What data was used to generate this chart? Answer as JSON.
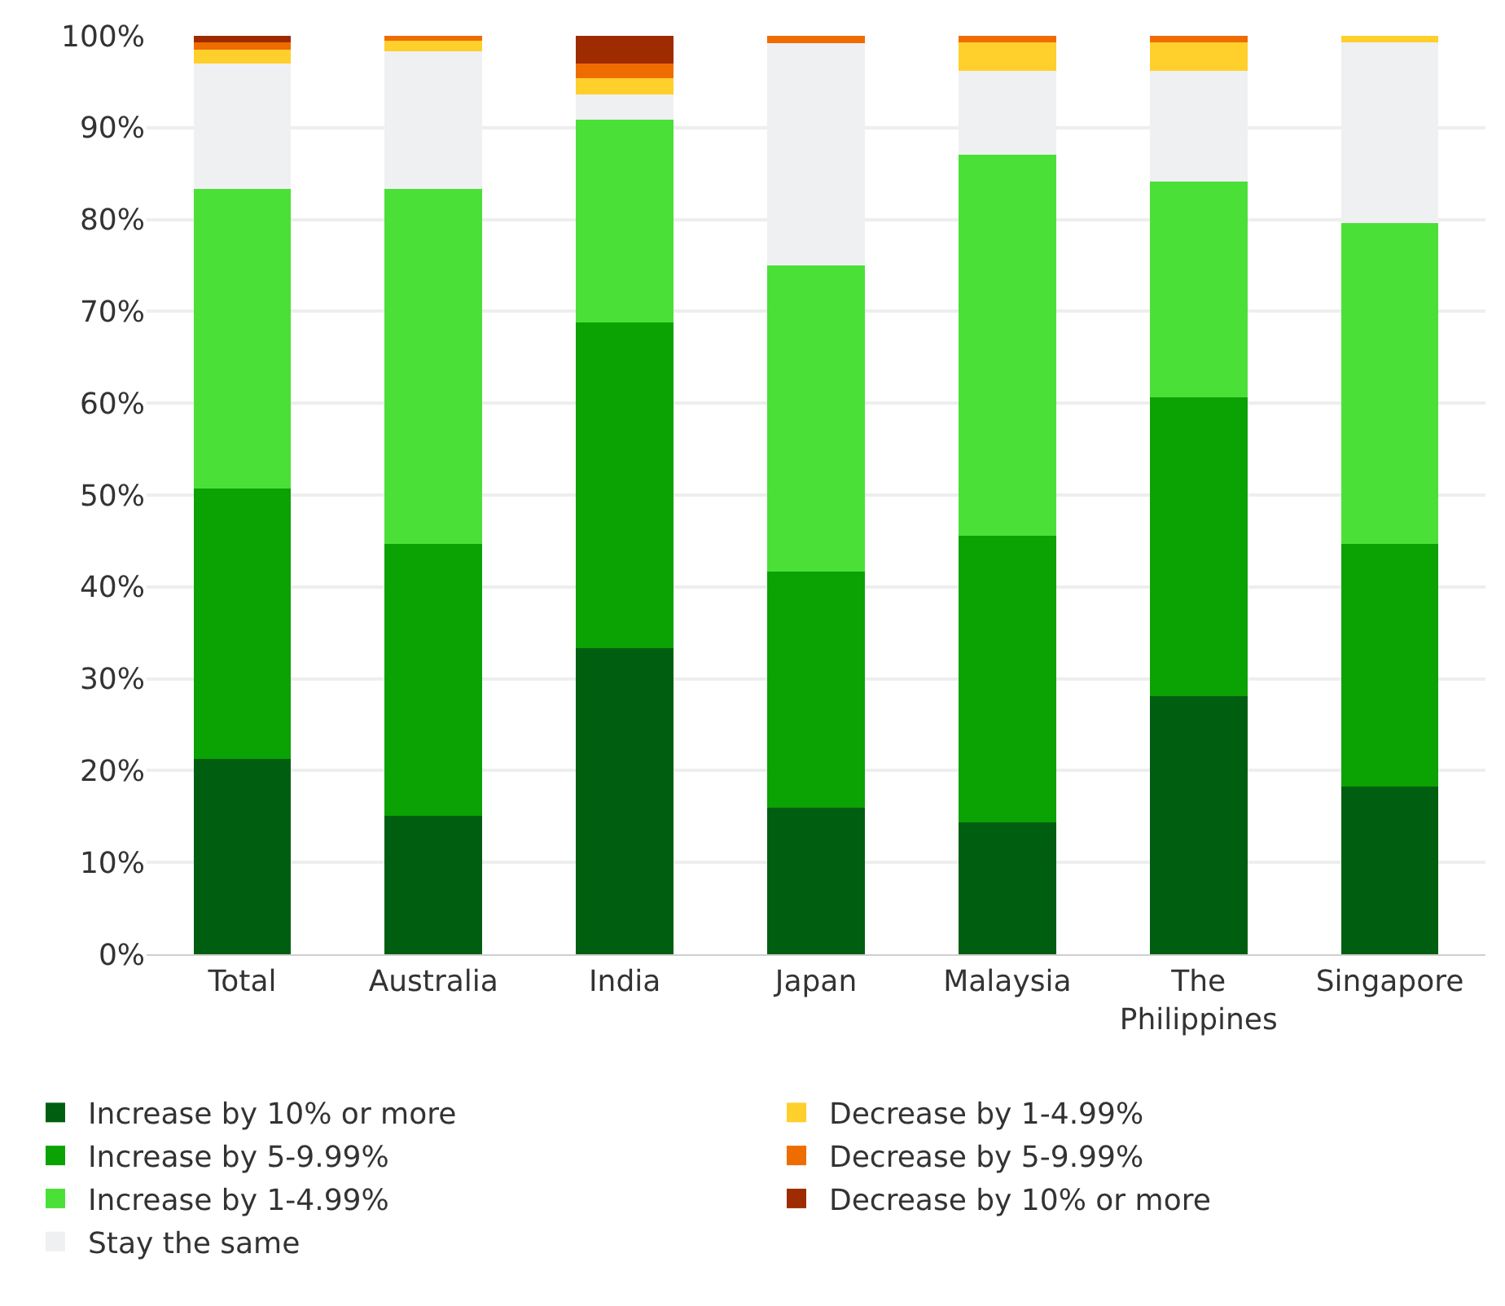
{
  "chart_data": {
    "type": "bar",
    "stacked": true,
    "categories": [
      "Total",
      "Australia",
      "India",
      "Japan",
      "Malaysia",
      "The Philippines",
      "Singapore"
    ],
    "series": [
      {
        "name": "Increase by 10% or more",
        "color": "#005e10",
        "values": [
          21.3,
          15.1,
          33.3,
          16.0,
          14.4,
          28.1,
          18.3
        ]
      },
      {
        "name": "Increase by 5-9.99%",
        "color": "#0ba203",
        "values": [
          29.4,
          29.6,
          35.5,
          25.7,
          31.2,
          32.5,
          26.4
        ]
      },
      {
        "name": "Increase by 1-4.99%",
        "color": "#4be038",
        "values": [
          32.6,
          38.6,
          22.1,
          33.3,
          41.5,
          23.5,
          34.9
        ]
      },
      {
        "name": "Stay the same",
        "color": "#eff0f2",
        "values": [
          13.7,
          15.0,
          2.7,
          24.2,
          9.1,
          12.1,
          19.7
        ]
      },
      {
        "name": "Decrease by 1-4.99%",
        "color": "#ffcf2c",
        "values": [
          1.5,
          1.2,
          1.8,
          0,
          3.1,
          3.1,
          0.7
        ]
      },
      {
        "name": "Decrease by 5-9.99%",
        "color": "#ef6c00",
        "values": [
          0.8,
          0.5,
          1.6,
          0.8,
          0.7,
          0.7,
          0
        ]
      },
      {
        "name": "Decrease by 10% or more",
        "color": "#9e2c00",
        "values": [
          0.7,
          0,
          3.0,
          0,
          0,
          0,
          0
        ]
      }
    ],
    "ylim": [
      0,
      100
    ],
    "yticks": [
      {
        "value": 0,
        "label": "0%"
      },
      {
        "value": 10,
        "label": "10%"
      },
      {
        "value": 20,
        "label": "20%"
      },
      {
        "value": 30,
        "label": "30%"
      },
      {
        "value": 40,
        "label": "40%"
      },
      {
        "value": 50,
        "label": "50%"
      },
      {
        "value": 60,
        "label": "60%"
      },
      {
        "value": 70,
        "label": "70%"
      },
      {
        "value": 80,
        "label": "80%"
      },
      {
        "value": 90,
        "label": "90%"
      },
      {
        "value": 100,
        "label": "100%"
      }
    ],
    "grid": "y",
    "legend": "bottom"
  }
}
